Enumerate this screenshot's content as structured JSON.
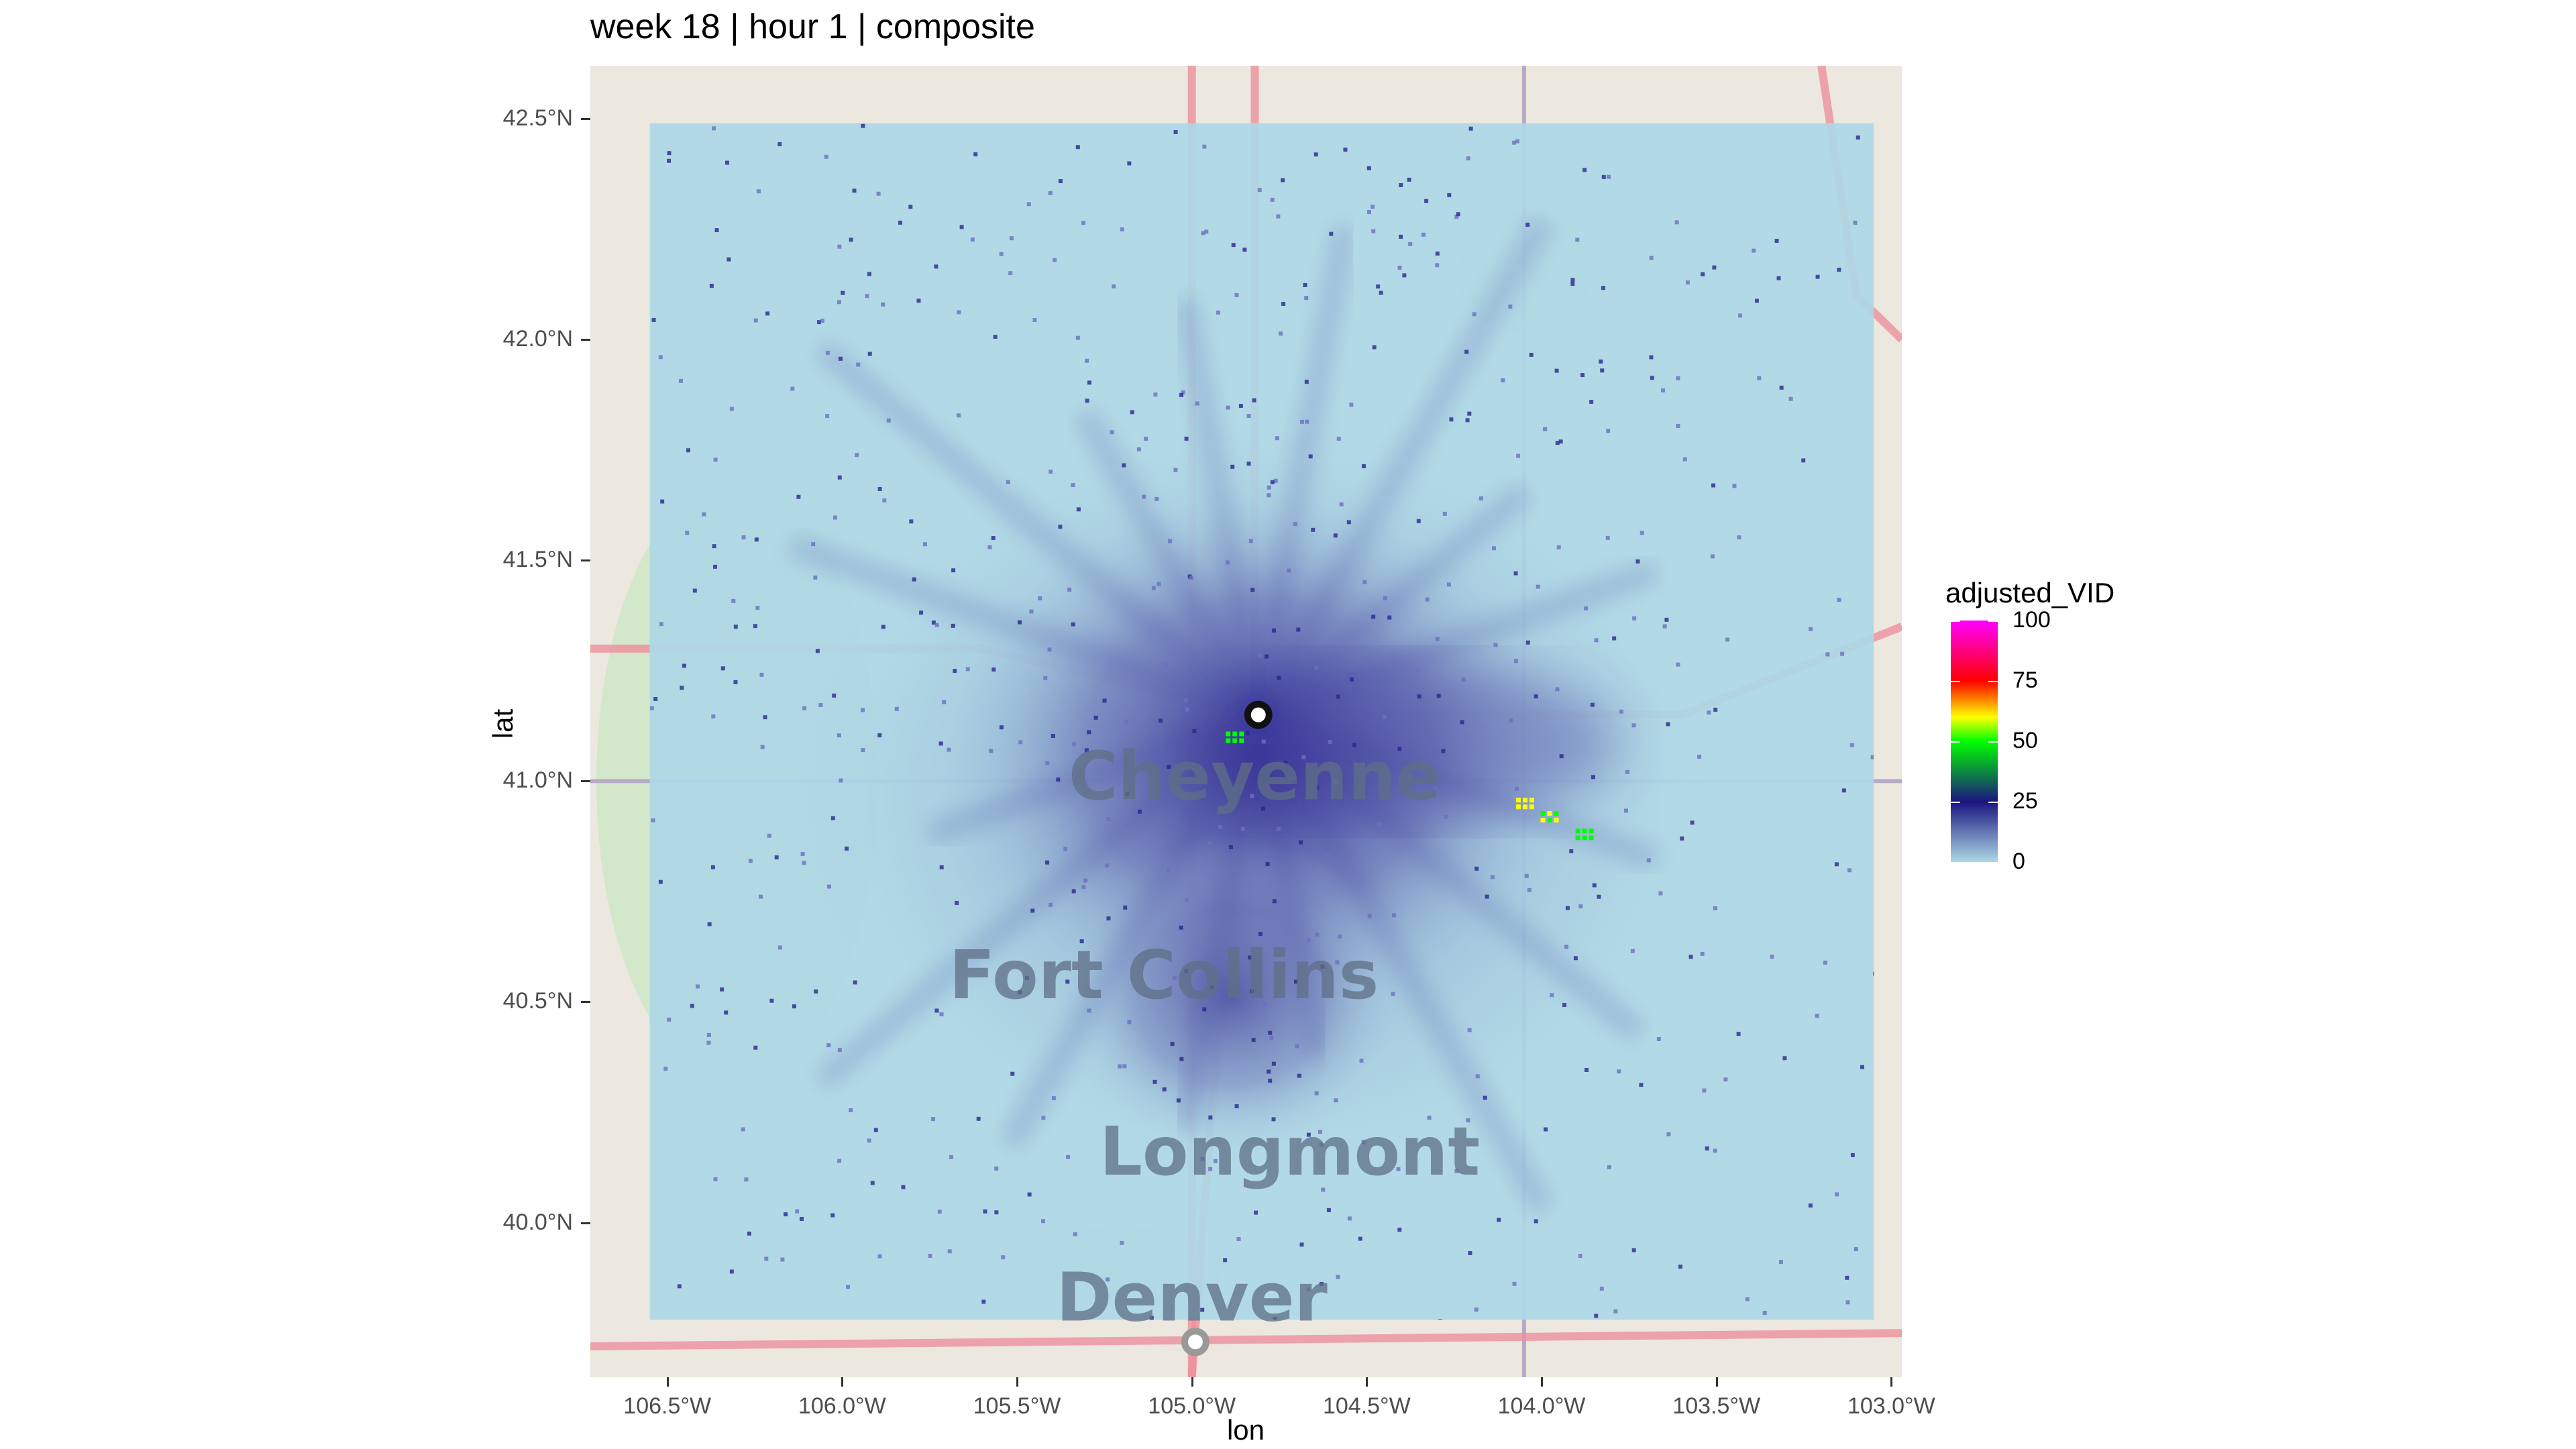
{
  "title": "week 18 | hour 1 | composite",
  "chart_data": {
    "type": "heatmap",
    "title": "week 18 | hour 1 | composite",
    "xlabel": "lon",
    "ylabel": "lat",
    "xlim": [
      -106.72,
      -102.97
    ],
    "ylim": [
      39.65,
      42.62
    ],
    "x_ticks": [
      {
        "value": -106.5,
        "label": "106.5°W"
      },
      {
        "value": -106.0,
        "label": "106.0°W"
      },
      {
        "value": -105.5,
        "label": "105.5°W"
      },
      {
        "value": -105.0,
        "label": "105.0°W"
      },
      {
        "value": -104.5,
        "label": "104.5°W"
      },
      {
        "value": -104.0,
        "label": "104.0°W"
      },
      {
        "value": -103.5,
        "label": "103.5°W"
      },
      {
        "value": -103.0,
        "label": "103.0°W"
      }
    ],
    "y_ticks": [
      {
        "value": 40.0,
        "label": "40.0°N"
      },
      {
        "value": 40.5,
        "label": "40.5°N"
      },
      {
        "value": 41.0,
        "label": "41.0°N"
      },
      {
        "value": 41.5,
        "label": "41.5°N"
      },
      {
        "value": 42.0,
        "label": "42.0°N"
      },
      {
        "value": 42.5,
        "label": "42.5°N"
      }
    ],
    "raster_extent": {
      "lon": [
        -106.55,
        -103.05
      ],
      "lat": [
        39.78,
        42.49
      ]
    },
    "radar_sites": [
      {
        "lon": -104.81,
        "lat": 41.15,
        "color": "#111111"
      },
      {
        "lon": -104.99,
        "lat": 39.73,
        "color": "#999999"
      }
    ],
    "hotspots": [
      {
        "lon": -104.88,
        "lat": 41.1,
        "value": 45
      },
      {
        "lon": -103.98,
        "lat": 40.92,
        "value": 55
      },
      {
        "lon": -103.88,
        "lat": 40.88,
        "value": 50
      },
      {
        "lon": -104.05,
        "lat": 40.95,
        "value": 60
      }
    ],
    "legend": {
      "title": "adjusted_VID",
      "position": "right",
      "min": 0,
      "max": 100,
      "ticks": [
        0,
        25,
        50,
        75,
        100
      ],
      "colors": [
        "#add8e6",
        "#1a1480",
        "#00ff00",
        "#ffff00",
        "#ff0000",
        "#ff00ff"
      ]
    }
  },
  "basemap": {
    "labels": [
      {
        "name": "Cheyenne",
        "lon": -104.82,
        "lat": 41.0
      },
      {
        "name": "Fort Collins",
        "lon": -105.08,
        "lat": 40.55
      },
      {
        "name": "Longmont",
        "lon": -104.72,
        "lat": 40.15
      },
      {
        "name": "Denver",
        "lon": -105.0,
        "lat": 39.82
      }
    ]
  }
}
